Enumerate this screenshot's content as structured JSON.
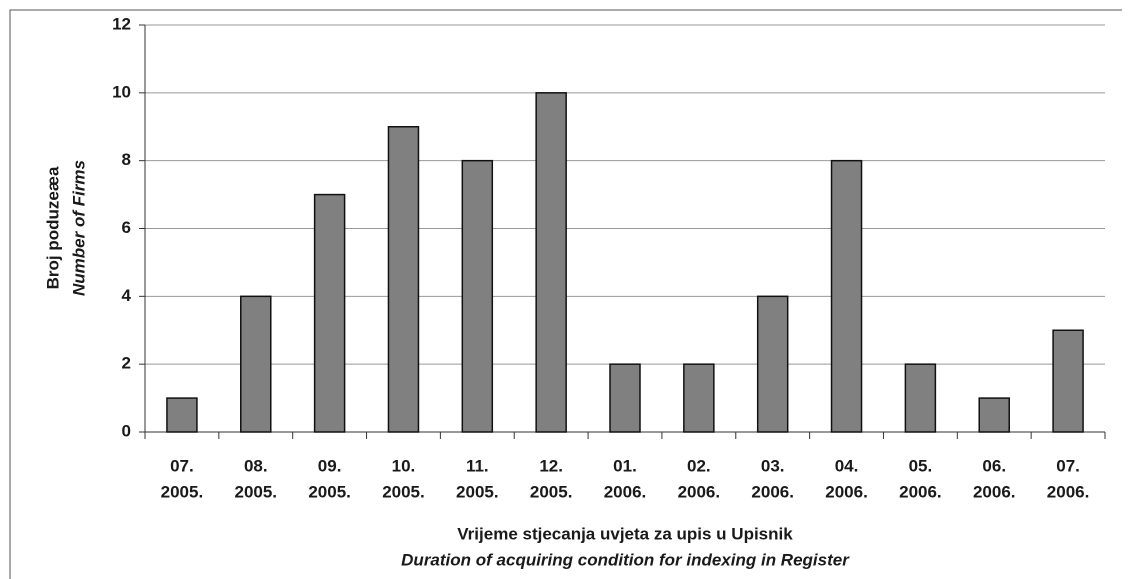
{
  "chart_data": {
    "type": "bar",
    "y_label": [
      "Broj poduzeæa",
      "Number of Firms"
    ],
    "x_label": [
      "Vrijeme stjecanja uvjeta za upis u Upisnik",
      "Duration of acquiring condition for indexing in Register"
    ],
    "categories": [
      [
        "07.",
        "2005."
      ],
      [
        "08.",
        "2005."
      ],
      [
        "09.",
        "2005."
      ],
      [
        "10.",
        "2005."
      ],
      [
        "11.",
        "2005."
      ],
      [
        "12.",
        "2005."
      ],
      [
        "01.",
        "2006."
      ],
      [
        "02.",
        "2006."
      ],
      [
        "03.",
        "2006."
      ],
      [
        "04.",
        "2006."
      ],
      [
        "05.",
        "2006."
      ],
      [
        "06.",
        "2006."
      ],
      [
        "07.",
        "2006."
      ]
    ],
    "values": [
      1,
      4,
      7,
      9,
      8,
      10,
      2,
      2,
      4,
      8,
      2,
      1,
      3
    ],
    "color": "#808080",
    "ylim": [
      0,
      12
    ],
    "yticks": [
      0,
      2,
      4,
      6,
      8,
      10,
      12
    ],
    "grid": true
  }
}
